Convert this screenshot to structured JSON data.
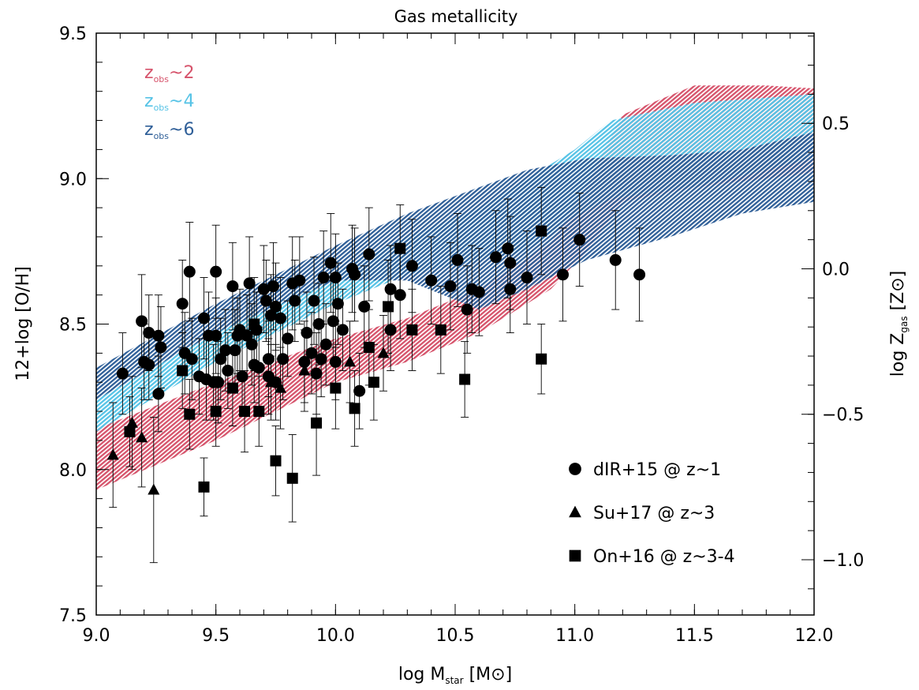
{
  "chart_data": {
    "type": "scatter",
    "title": "Gas metallicity",
    "xlabel": {
      "main": "log M",
      "sub": "star",
      "unit": "[M⊙]"
    },
    "ylabel": "12+log [O/H]",
    "y2label": {
      "main": "log Z",
      "sub": "gas",
      "unit": "[Z⊙]"
    },
    "xlim": [
      9.0,
      12.0
    ],
    "ylim": [
      7.5,
      9.5
    ],
    "y2lim": [
      -1.19,
      0.81
    ],
    "xticks": [
      9.0,
      9.5,
      10.0,
      10.5,
      11.0,
      11.5,
      12.0
    ],
    "xtick_labels": [
      "9.0",
      "9.5",
      "10.0",
      "10.5",
      "11.0",
      "11.5",
      "12.0"
    ],
    "yticks": [
      7.5,
      8.0,
      8.5,
      9.0,
      9.5
    ],
    "ytick_labels": [
      "7.5",
      "8.0",
      "8.5",
      "9.0",
      "9.5"
    ],
    "y2ticks": [
      -1.0,
      -0.5,
      0.0,
      0.5
    ],
    "y2tick_labels": [
      "−1.0",
      "−0.5",
      "0.0",
      "0.5"
    ],
    "bands": [
      {
        "name": "z",
        "sub": "obs",
        "suffix": "~2",
        "color": "#d6536b",
        "x": [
          9.0,
          9.5,
          10.0,
          10.3,
          10.6,
          10.9,
          11.05,
          11.2,
          11.5,
          11.8,
          12.0
        ],
        "lower": [
          7.93,
          8.1,
          8.3,
          8.37,
          8.47,
          8.62,
          8.75,
          8.92,
          8.97,
          9.0,
          9.02
        ],
        "upper": [
          8.14,
          8.3,
          8.45,
          8.52,
          8.62,
          8.78,
          8.98,
          9.22,
          9.32,
          9.32,
          9.31
        ]
      },
      {
        "name": "z",
        "sub": "obs",
        "suffix": "~4",
        "color": "#56c3e6",
        "x": [
          9.0,
          9.5,
          10.0,
          10.3,
          10.6,
          10.8,
          11.0,
          11.15,
          11.5,
          12.0
        ],
        "lower": [
          8.13,
          8.37,
          8.57,
          8.67,
          8.72,
          8.75,
          8.87,
          8.93,
          8.97,
          9.07
        ],
        "upper": [
          8.24,
          8.47,
          8.68,
          8.8,
          8.9,
          9.0,
          9.1,
          9.2,
          9.26,
          9.29
        ]
      },
      {
        "name": "z",
        "sub": "obs",
        "suffix": "~6",
        "color": "#2f5f98",
        "x": [
          9.0,
          9.5,
          10.0,
          10.3,
          10.6,
          10.8,
          11.05,
          11.4,
          11.7,
          12.0
        ],
        "lower": [
          8.24,
          8.47,
          8.65,
          8.65,
          8.55,
          8.62,
          8.72,
          8.8,
          8.88,
          8.92
        ],
        "upper": [
          8.35,
          8.57,
          8.77,
          8.88,
          8.97,
          9.03,
          9.07,
          9.08,
          9.1,
          9.16
        ]
      }
    ],
    "series": [
      {
        "name": "dIR+15 @ z~1",
        "marker": "circle",
        "points": [
          [
            9.11,
            8.33,
            0.14
          ],
          [
            9.19,
            8.51,
            0.16
          ],
          [
            9.2,
            8.37,
            0.13
          ],
          [
            9.22,
            8.47,
            0.13
          ],
          [
            9.22,
            8.36,
            0.12
          ],
          [
            9.26,
            8.46,
            0.14
          ],
          [
            9.26,
            8.26,
            0.13
          ],
          [
            9.27,
            8.42,
            0.14
          ],
          [
            9.36,
            8.57,
            0.15
          ],
          [
            9.37,
            8.4,
            0.14
          ],
          [
            9.39,
            8.68,
            0.17
          ],
          [
            9.4,
            8.38,
            0.14
          ],
          [
            9.43,
            8.32,
            0.13
          ],
          [
            9.45,
            8.52,
            0.14
          ],
          [
            9.46,
            8.31,
            0.14
          ],
          [
            9.47,
            8.46,
            0.15
          ],
          [
            9.49,
            8.3,
            0.13
          ],
          [
            9.5,
            8.68,
            0.16
          ],
          [
            9.5,
            8.46,
            0.13
          ],
          [
            9.51,
            8.3,
            0.14
          ],
          [
            9.52,
            8.38,
            0.14
          ],
          [
            9.54,
            8.41,
            0.14
          ],
          [
            9.55,
            8.34,
            0.13
          ],
          [
            9.57,
            8.63,
            0.15
          ],
          [
            9.58,
            8.41,
            0.14
          ],
          [
            9.59,
            8.46,
            0.13
          ],
          [
            9.6,
            8.48,
            0.14
          ],
          [
            9.61,
            8.32,
            0.13
          ],
          [
            9.63,
            8.46,
            0.14
          ],
          [
            9.64,
            8.64,
            0.16
          ],
          [
            9.65,
            8.43,
            0.14
          ],
          [
            9.66,
            8.36,
            0.13
          ],
          [
            9.67,
            8.48,
            0.13
          ],
          [
            9.68,
            8.35,
            0.14
          ],
          [
            9.7,
            8.62,
            0.15
          ],
          [
            9.71,
            8.58,
            0.14
          ],
          [
            9.72,
            8.32,
            0.13
          ],
          [
            9.72,
            8.38,
            0.13
          ],
          [
            9.73,
            8.53,
            0.14
          ],
          [
            9.74,
            8.63,
            0.15
          ],
          [
            9.75,
            8.56,
            0.15
          ],
          [
            9.75,
            8.3,
            0.13
          ],
          [
            9.77,
            8.52,
            0.14
          ],
          [
            9.78,
            8.38,
            0.14
          ],
          [
            9.8,
            8.45,
            0.13
          ],
          [
            9.82,
            8.64,
            0.16
          ],
          [
            9.83,
            8.58,
            0.14
          ],
          [
            9.85,
            8.65,
            0.15
          ],
          [
            9.87,
            8.37,
            0.14
          ],
          [
            9.88,
            8.47,
            0.14
          ],
          [
            9.9,
            8.4,
            0.14
          ],
          [
            9.91,
            8.58,
            0.15
          ],
          [
            9.92,
            8.33,
            0.14
          ],
          [
            9.93,
            8.5,
            0.14
          ],
          [
            9.94,
            8.38,
            0.13
          ],
          [
            9.95,
            8.66,
            0.16
          ],
          [
            9.96,
            8.43,
            0.14
          ],
          [
            9.98,
            8.71,
            0.17
          ],
          [
            9.99,
            8.51,
            0.14
          ],
          [
            10.0,
            8.37,
            0.13
          ],
          [
            10.0,
            8.66,
            0.15
          ],
          [
            10.01,
            8.57,
            0.14
          ],
          [
            10.03,
            8.48,
            0.14
          ],
          [
            10.07,
            8.69,
            0.15
          ],
          [
            10.08,
            8.67,
            0.16
          ],
          [
            10.1,
            8.27,
            0.13
          ],
          [
            10.12,
            8.56,
            0.14
          ],
          [
            10.14,
            8.74,
            0.16
          ],
          [
            10.23,
            8.62,
            0.15
          ],
          [
            10.23,
            8.48,
            0.14
          ],
          [
            10.27,
            8.6,
            0.15
          ],
          [
            10.32,
            8.7,
            0.16
          ],
          [
            10.4,
            8.65,
            0.15
          ],
          [
            10.48,
            8.63,
            0.15
          ],
          [
            10.51,
            8.72,
            0.16
          ],
          [
            10.55,
            8.55,
            0.15
          ],
          [
            10.57,
            8.62,
            0.15
          ],
          [
            10.6,
            8.61,
            0.15
          ],
          [
            10.67,
            8.73,
            0.16
          ],
          [
            10.72,
            8.76,
            0.17
          ],
          [
            10.73,
            8.71,
            0.16
          ],
          [
            10.73,
            8.62,
            0.15
          ],
          [
            10.8,
            8.66,
            0.16
          ],
          [
            10.95,
            8.67,
            0.16
          ],
          [
            11.02,
            8.79,
            0.16
          ],
          [
            11.17,
            8.72,
            0.17
          ],
          [
            11.27,
            8.67,
            0.16
          ]
        ]
      },
      {
        "name": "Su+17 @ z~3",
        "marker": "triangle",
        "points": [
          [
            9.07,
            8.05,
            0.18
          ],
          [
            9.15,
            8.16,
            0.16
          ],
          [
            9.19,
            8.11,
            0.17
          ],
          [
            9.24,
            7.93,
            0.25
          ],
          [
            9.73,
            8.3,
            0.13
          ],
          [
            9.77,
            8.28,
            0.14
          ],
          [
            9.87,
            8.34,
            0.14
          ],
          [
            10.06,
            8.37,
            0.14
          ],
          [
            10.2,
            8.4,
            0.13
          ]
        ]
      },
      {
        "name": "On+16 @ z~3-4",
        "marker": "square",
        "points": [
          [
            9.14,
            8.13,
            0.12
          ],
          [
            9.36,
            8.34,
            0.13
          ],
          [
            9.39,
            8.19,
            0.12
          ],
          [
            9.45,
            7.94,
            0.1
          ],
          [
            9.5,
            8.2,
            0.12
          ],
          [
            9.62,
            8.2,
            0.14
          ],
          [
            9.57,
            8.28,
            0.13
          ],
          [
            9.66,
            8.5,
            0.16
          ],
          [
            9.68,
            8.2,
            0.12
          ],
          [
            9.75,
            8.03,
            0.12
          ],
          [
            9.82,
            7.97,
            0.15
          ],
          [
            9.92,
            8.16,
            0.18
          ],
          [
            10.0,
            8.28,
            0.14
          ],
          [
            10.08,
            8.21,
            0.13
          ],
          [
            10.16,
            8.3,
            0.13
          ],
          [
            10.14,
            8.42,
            0.13
          ],
          [
            10.22,
            8.56,
            0.16
          ],
          [
            10.27,
            8.76,
            0.15
          ],
          [
            10.32,
            8.48,
            0.14
          ],
          [
            10.44,
            8.48,
            0.15
          ],
          [
            10.54,
            8.31,
            0.13
          ],
          [
            10.86,
            8.82,
            0.15
          ],
          [
            10.86,
            8.38,
            0.12
          ]
        ]
      }
    ],
    "legend_placement": "bottom-right",
    "band_legend_placement": "top-left",
    "grid": false
  }
}
